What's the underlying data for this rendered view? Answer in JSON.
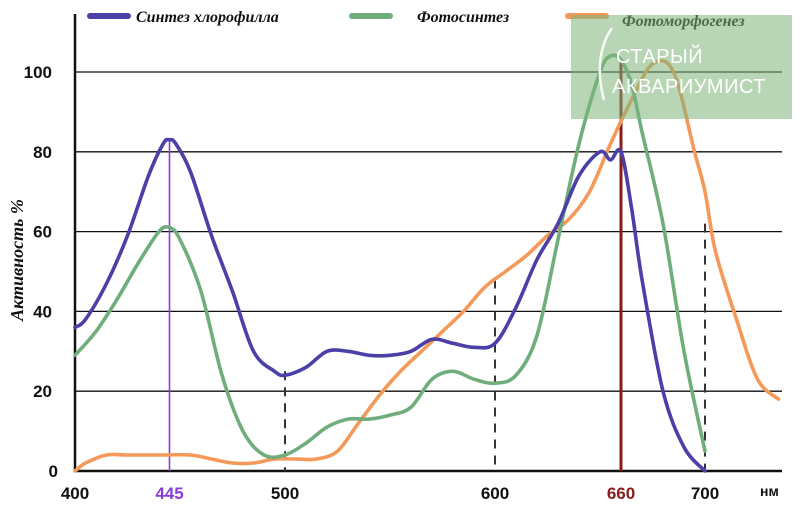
{
  "chart_data": {
    "type": "line",
    "title": "",
    "xlabel": "",
    "x_unit": "нм",
    "ylabel": "Активность %",
    "xlim": [
      400,
      738
    ],
    "ylim": [
      0,
      110
    ],
    "grid": "horizontal",
    "legend_position": "top",
    "x_ticks": [
      {
        "value": 400,
        "label": "400",
        "color": "#111111"
      },
      {
        "value": 445,
        "label": "445",
        "color": "#8a3bdc"
      },
      {
        "value": 500,
        "label": "500",
        "color": "#111111"
      },
      {
        "value": 600,
        "label": "600",
        "color": "#111111"
      },
      {
        "value": 660,
        "label": "660",
        "color": "#8b1a1a"
      },
      {
        "value": 700,
        "label": "700",
        "color": "#111111"
      }
    ],
    "y_ticks": [
      0,
      20,
      40,
      60,
      80,
      100
    ],
    "marker_lines": [
      {
        "x": 445,
        "y_top": 83,
        "style": "solid",
        "color": "#8a3bdc"
      },
      {
        "x": 660,
        "y_top": 103,
        "style": "solid",
        "color": "#8b1a1a"
      },
      {
        "x": 500,
        "y_top": 25,
        "style": "dashed",
        "color": "#333333"
      },
      {
        "x": 600,
        "y_top": 48,
        "style": "dashed",
        "color": "#333333"
      },
      {
        "x": 700,
        "y_top": 62,
        "style": "dashed",
        "color": "#333333"
      }
    ],
    "series": [
      {
        "name": "Синтез хлорофилла",
        "color": "#4b3fa8",
        "x": [
          400,
          405,
          415,
          425,
          435,
          442,
          445,
          448,
          455,
          465,
          475,
          485,
          495,
          500,
          510,
          520,
          530,
          540,
          550,
          560,
          570,
          580,
          590,
          600,
          610,
          620,
          630,
          640,
          650,
          655,
          660,
          665,
          670,
          680,
          690,
          700
        ],
        "y": [
          36,
          38,
          47,
          59,
          74,
          82,
          83,
          82,
          75,
          59,
          45,
          30,
          25,
          24,
          26,
          30,
          30,
          29,
          29,
          30,
          33,
          32,
          31,
          32,
          41,
          53,
          62,
          74,
          80,
          78,
          80,
          66,
          48,
          20,
          6,
          0
        ]
      },
      {
        "name": "Фотосинтез",
        "color": "#6fae7c",
        "x": [
          400,
          410,
          420,
          430,
          440,
          445,
          450,
          460,
          470,
          480,
          490,
          500,
          510,
          520,
          530,
          540,
          550,
          560,
          570,
          580,
          590,
          600,
          610,
          620,
          630,
          640,
          650,
          655,
          660,
          665,
          670,
          680,
          690,
          700
        ],
        "y": [
          29,
          35,
          43,
          52,
          60,
          61,
          58,
          45,
          24,
          10,
          4,
          4,
          7,
          11,
          13,
          13,
          14,
          16,
          23,
          25,
          23,
          22,
          24,
          34,
          58,
          82,
          100,
          104,
          103,
          97,
          85,
          62,
          30,
          5
        ]
      },
      {
        "name": "Фотоморфогенез",
        "color": "#f4995a",
        "x": [
          400,
          405,
          415,
          425,
          440,
          455,
          465,
          475,
          485,
          495,
          505,
          515,
          525,
          535,
          545,
          555,
          565,
          575,
          585,
          595,
          605,
          615,
          625,
          635,
          645,
          655,
          665,
          675,
          685,
          695,
          700,
          705,
          715,
          725,
          735
        ],
        "y": [
          0,
          2,
          4,
          4,
          4,
          4,
          3,
          2,
          2,
          3,
          3,
          3,
          5,
          12,
          19,
          25,
          30,
          35,
          40,
          46,
          50,
          54,
          59,
          63,
          70,
          82,
          93,
          102,
          100,
          80,
          70,
          55,
          38,
          23,
          18
        ]
      }
    ]
  },
  "watermark": {
    "line1": "СТАРЫЙ",
    "line2": "АКВАРИУМИСТ"
  }
}
